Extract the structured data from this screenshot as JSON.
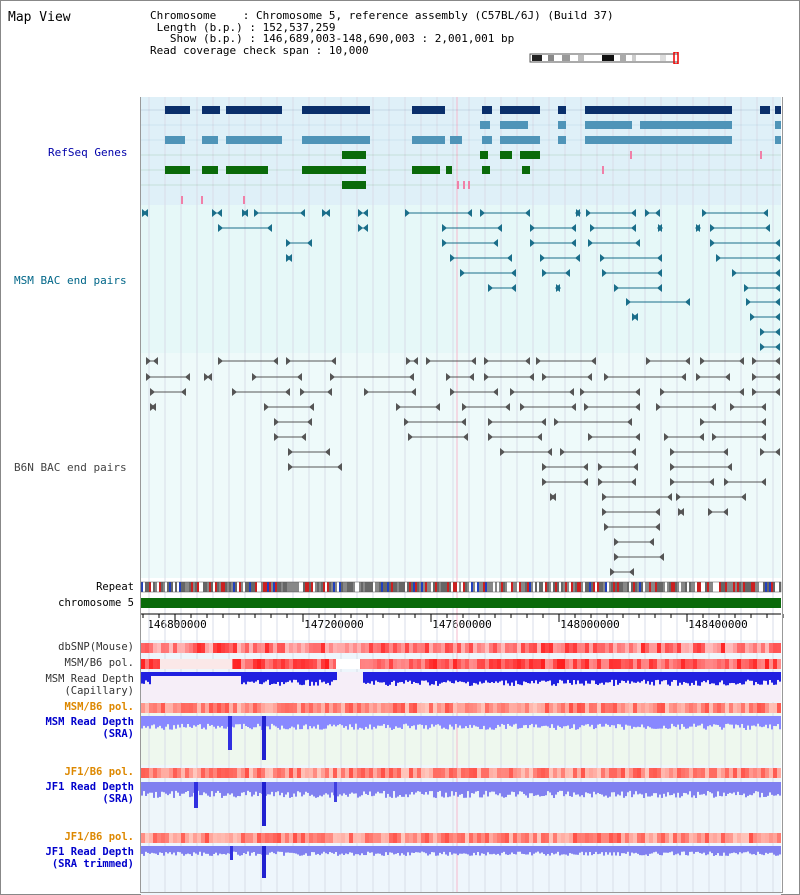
{
  "header": {
    "title": "Map View",
    "chromosome_label": "Chromosome",
    "chromosome_value": "Chromosome 5, reference assembly (C57BL/6J) (Build 37)",
    "length_label": "Length (b.p.)",
    "length_value": "152,537,259",
    "show_label": "Show (b.p.)",
    "show_value": "146,689,003-148,690,003 : 2,001,001 bp",
    "coverage_label": "Read coverage check span",
    "coverage_value": "10,000"
  },
  "tracks": {
    "refseq": "RefSeq Genes",
    "msm_bac": "MSM BAC end pairs",
    "b6n_bac": "B6N BAC end pairs",
    "repeat": "Repeat",
    "chromosome": "chromosome 5",
    "dbsnp": "dbSNP(Mouse)",
    "msm_pol": "MSM/B6 pol.",
    "msm_depth_cap_1": "MSM Read Depth",
    "msm_depth_cap_2": "(Capillary)",
    "msm_pol_2": "MSM/B6 pol.",
    "msm_depth_sra_1": "MSM Read Depth",
    "msm_depth_sra_2": "(SRA)",
    "jf1_pol": "JF1/B6 pol.",
    "jf1_depth_sra_1": "JF1 Read Depth",
    "jf1_depth_sra_2": "(SRA)",
    "jf1_pol_2": "JF1/B6 pol.",
    "jf1_depth_trim_1": "JF1 Read Depth",
    "jf1_depth_trim_2": "(SRA trimmed)"
  },
  "axis": {
    "ticks": [
      "146800000",
      "147200000",
      "147600000",
      "148000000",
      "148400000"
    ]
  },
  "colors": {
    "refseq_bg": "#dff0f8",
    "refseq_label": "#0000aa",
    "msm_label": "#006688",
    "b6n_label": "#444444",
    "pol_orange": "#dd8800",
    "depth_blue": "#0000cc",
    "gene_navy": "#0a2f6b",
    "gene_teal": "#4f94b8",
    "gene_green": "#0a6a0a",
    "chrom_green": "#0a6a0a"
  }
}
